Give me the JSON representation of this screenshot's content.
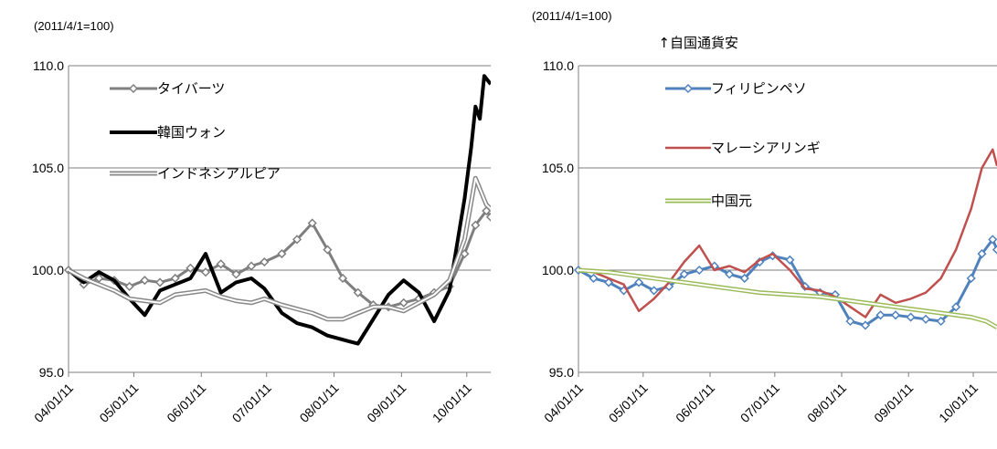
{
  "chart_data": [
    {
      "type": "line",
      "unit_label": "(2011/4/1=100)",
      "note": "",
      "ylim": [
        95,
        110
      ],
      "y_ticks": [
        "95.0",
        "100.0",
        "105.0",
        "110.0"
      ],
      "x_ticks": [
        "04/01/11",
        "05/01/11",
        "06/01/11",
        "07/01/11",
        "08/01/11",
        "09/01/11",
        "10/01/11"
      ],
      "x_range": [
        "2011-04-01",
        "2011-10-12"
      ],
      "grid": "horizontal",
      "legend_position": "top-left",
      "series": [
        {
          "name": "タイバーツ",
          "color": "#7f7f7f",
          "style": "diamond-markers",
          "points": [
            [
              "2011-04-01",
              100.0
            ],
            [
              "2011-04-08",
              99.3
            ],
            [
              "2011-04-15",
              99.6
            ],
            [
              "2011-04-22",
              99.5
            ],
            [
              "2011-04-29",
              99.2
            ],
            [
              "2011-05-06",
              99.5
            ],
            [
              "2011-05-13",
              99.4
            ],
            [
              "2011-05-20",
              99.6
            ],
            [
              "2011-05-27",
              100.1
            ],
            [
              "2011-06-03",
              99.9
            ],
            [
              "2011-06-10",
              100.3
            ],
            [
              "2011-06-17",
              99.8
            ],
            [
              "2011-06-24",
              100.2
            ],
            [
              "2011-06-30",
              100.4
            ],
            [
              "2011-07-08",
              100.8
            ],
            [
              "2011-07-15",
              101.5
            ],
            [
              "2011-07-22",
              102.3
            ],
            [
              "2011-07-29",
              101.0
            ],
            [
              "2011-08-05",
              99.6
            ],
            [
              "2011-08-12",
              98.9
            ],
            [
              "2011-08-19",
              98.3
            ],
            [
              "2011-08-26",
              98.2
            ],
            [
              "2011-09-02",
              98.4
            ],
            [
              "2011-09-09",
              98.6
            ],
            [
              "2011-09-16",
              98.9
            ],
            [
              "2011-09-23",
              99.2
            ],
            [
              "2011-09-30",
              100.8
            ],
            [
              "2011-10-05",
              102.2
            ],
            [
              "2011-10-10",
              102.9
            ],
            [
              "2011-10-12",
              102.6
            ]
          ]
        },
        {
          "name": "韓国ウォン",
          "color": "#000000",
          "style": "thick",
          "points": [
            [
              "2011-04-01",
              100.0
            ],
            [
              "2011-04-08",
              99.4
            ],
            [
              "2011-04-15",
              99.9
            ],
            [
              "2011-04-22",
              99.5
            ],
            [
              "2011-04-29",
              98.6
            ],
            [
              "2011-05-06",
              97.8
            ],
            [
              "2011-05-13",
              99.0
            ],
            [
              "2011-05-20",
              99.3
            ],
            [
              "2011-05-27",
              99.6
            ],
            [
              "2011-06-03",
              100.8
            ],
            [
              "2011-06-10",
              98.9
            ],
            [
              "2011-06-17",
              99.4
            ],
            [
              "2011-06-24",
              99.6
            ],
            [
              "2011-06-30",
              99.1
            ],
            [
              "2011-07-08",
              97.9
            ],
            [
              "2011-07-15",
              97.4
            ],
            [
              "2011-07-22",
              97.2
            ],
            [
              "2011-07-29",
              96.8
            ],
            [
              "2011-08-05",
              96.6
            ],
            [
              "2011-08-12",
              96.4
            ],
            [
              "2011-08-19",
              97.6
            ],
            [
              "2011-08-26",
              98.8
            ],
            [
              "2011-09-02",
              99.5
            ],
            [
              "2011-09-09",
              98.9
            ],
            [
              "2011-09-16",
              97.5
            ],
            [
              "2011-09-23",
              99.0
            ],
            [
              "2011-09-30",
              103.5
            ],
            [
              "2011-10-03",
              106.0
            ],
            [
              "2011-10-05",
              108.0
            ],
            [
              "2011-10-07",
              107.4
            ],
            [
              "2011-10-09",
              109.5
            ],
            [
              "2011-10-12",
              109.1
            ]
          ]
        },
        {
          "name": "インドネシアルピア",
          "color": "#888888",
          "style": "double-line",
          "points": [
            [
              "2011-04-01",
              100.0
            ],
            [
              "2011-04-08",
              99.6
            ],
            [
              "2011-04-15",
              99.3
            ],
            [
              "2011-04-22",
              99.0
            ],
            [
              "2011-04-29",
              98.6
            ],
            [
              "2011-05-06",
              98.5
            ],
            [
              "2011-05-13",
              98.4
            ],
            [
              "2011-05-20",
              98.8
            ],
            [
              "2011-05-27",
              98.9
            ],
            [
              "2011-06-03",
              99.0
            ],
            [
              "2011-06-10",
              98.7
            ],
            [
              "2011-06-17",
              98.5
            ],
            [
              "2011-06-24",
              98.4
            ],
            [
              "2011-06-30",
              98.6
            ],
            [
              "2011-07-08",
              98.3
            ],
            [
              "2011-07-15",
              98.1
            ],
            [
              "2011-07-22",
              97.9
            ],
            [
              "2011-07-29",
              97.6
            ],
            [
              "2011-08-05",
              97.6
            ],
            [
              "2011-08-12",
              97.9
            ],
            [
              "2011-08-19",
              98.2
            ],
            [
              "2011-08-26",
              98.2
            ],
            [
              "2011-09-02",
              98.0
            ],
            [
              "2011-09-09",
              98.4
            ],
            [
              "2011-09-16",
              98.8
            ],
            [
              "2011-09-23",
              99.5
            ],
            [
              "2011-09-30",
              101.5
            ],
            [
              "2011-10-05",
              104.5
            ],
            [
              "2011-10-10",
              103.2
            ],
            [
              "2011-10-12",
              103.0
            ]
          ]
        }
      ]
    },
    {
      "type": "line",
      "unit_label": "(2011/4/1=100)",
      "note": "↑自国通貨安",
      "ylim": [
        95,
        110
      ],
      "y_ticks": [
        "95.0",
        "100.0",
        "105.0",
        "110.0"
      ],
      "x_ticks": [
        "04/01/11",
        "05/01/11",
        "06/01/11",
        "07/01/11",
        "08/01/11",
        "09/01/11",
        "10/01/11"
      ],
      "x_range": [
        "2011-04-01",
        "2011-10-12"
      ],
      "grid": "horizontal",
      "legend_position": "top-left",
      "series": [
        {
          "name": "フィリピンペソ",
          "color": "#4f81bd",
          "style": "diamond-markers",
          "points": [
            [
              "2011-04-01",
              100.0
            ],
            [
              "2011-04-08",
              99.6
            ],
            [
              "2011-04-15",
              99.4
            ],
            [
              "2011-04-22",
              99.0
            ],
            [
              "2011-04-29",
              99.4
            ],
            [
              "2011-05-06",
              99.0
            ],
            [
              "2011-05-13",
              99.2
            ],
            [
              "2011-05-20",
              99.8
            ],
            [
              "2011-05-27",
              100.0
            ],
            [
              "2011-06-03",
              100.2
            ],
            [
              "2011-06-10",
              99.8
            ],
            [
              "2011-06-17",
              99.6
            ],
            [
              "2011-06-24",
              100.4
            ],
            [
              "2011-06-30",
              100.7
            ],
            [
              "2011-07-08",
              100.5
            ],
            [
              "2011-07-15",
              99.2
            ],
            [
              "2011-07-22",
              98.9
            ],
            [
              "2011-07-29",
              98.8
            ],
            [
              "2011-08-05",
              97.5
            ],
            [
              "2011-08-12",
              97.3
            ],
            [
              "2011-08-19",
              97.8
            ],
            [
              "2011-08-26",
              97.8
            ],
            [
              "2011-09-02",
              97.7
            ],
            [
              "2011-09-09",
              97.6
            ],
            [
              "2011-09-16",
              97.5
            ],
            [
              "2011-09-23",
              98.2
            ],
            [
              "2011-09-30",
              99.6
            ],
            [
              "2011-10-05",
              100.8
            ],
            [
              "2011-10-10",
              101.5
            ],
            [
              "2011-10-12",
              101.0
            ]
          ]
        },
        {
          "name": "マレーシアリンギ",
          "color": "#c0504d",
          "style": "line",
          "points": [
            [
              "2011-04-01",
              100.0
            ],
            [
              "2011-04-08",
              99.9
            ],
            [
              "2011-04-15",
              99.6
            ],
            [
              "2011-04-22",
              99.3
            ],
            [
              "2011-04-29",
              98.0
            ],
            [
              "2011-05-06",
              98.6
            ],
            [
              "2011-05-13",
              99.4
            ],
            [
              "2011-05-20",
              100.4
            ],
            [
              "2011-05-27",
              101.2
            ],
            [
              "2011-06-03",
              100.0
            ],
            [
              "2011-06-10",
              100.2
            ],
            [
              "2011-06-17",
              99.9
            ],
            [
              "2011-06-24",
              100.5
            ],
            [
              "2011-06-30",
              100.8
            ],
            [
              "2011-07-08",
              100.0
            ],
            [
              "2011-07-15",
              99.1
            ],
            [
              "2011-07-22",
              99.0
            ],
            [
              "2011-07-29",
              98.7
            ],
            [
              "2011-08-05",
              98.2
            ],
            [
              "2011-08-12",
              97.7
            ],
            [
              "2011-08-19",
              98.8
            ],
            [
              "2011-08-26",
              98.4
            ],
            [
              "2011-09-02",
              98.6
            ],
            [
              "2011-09-09",
              98.9
            ],
            [
              "2011-09-16",
              99.6
            ],
            [
              "2011-09-23",
              101.0
            ],
            [
              "2011-09-30",
              103.0
            ],
            [
              "2011-10-05",
              105.0
            ],
            [
              "2011-10-10",
              105.9
            ],
            [
              "2011-10-12",
              105.1
            ]
          ]
        },
        {
          "name": "中国元",
          "color": "#9bbb59",
          "style": "double-line",
          "points": [
            [
              "2011-04-01",
              100.0
            ],
            [
              "2011-04-15",
              99.9
            ],
            [
              "2011-04-29",
              99.7
            ],
            [
              "2011-05-13",
              99.5
            ],
            [
              "2011-05-27",
              99.3
            ],
            [
              "2011-06-10",
              99.1
            ],
            [
              "2011-06-24",
              98.9
            ],
            [
              "2011-07-08",
              98.8
            ],
            [
              "2011-07-22",
              98.7
            ],
            [
              "2011-08-05",
              98.5
            ],
            [
              "2011-08-19",
              98.3
            ],
            [
              "2011-09-02",
              98.1
            ],
            [
              "2011-09-16",
              97.9
            ],
            [
              "2011-09-30",
              97.7
            ],
            [
              "2011-10-07",
              97.5
            ],
            [
              "2011-10-12",
              97.2
            ]
          ]
        }
      ]
    }
  ]
}
